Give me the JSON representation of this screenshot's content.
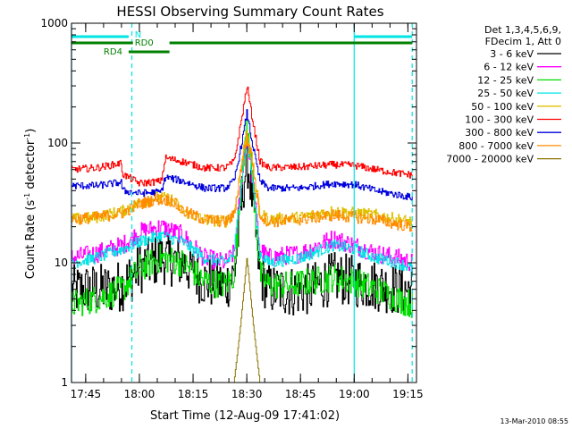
{
  "chart_data": {
    "type": "line",
    "title": "HESSI Observing Summary Count Rates",
    "xlabel": "Start Time (12-Aug-09 17:41:02)",
    "ylabel_main": "Count Rate (s",
    "ylabel_sup1": "-1",
    "ylabel_mid": " detector",
    "ylabel_sup2": "-1",
    "ylabel_end": ")",
    "yscale": "log",
    "ylim": [
      1,
      1000
    ],
    "xlim": [
      17.684,
      19.29
    ],
    "x_tick_labels": [
      "17:45",
      "18:00",
      "18:15",
      "18:30",
      "18:45",
      "19:00",
      "19:15"
    ],
    "x_tick_hours": [
      17.75,
      18.0,
      18.25,
      18.5,
      18.75,
      19.0,
      19.25
    ],
    "y_tick_labels": [
      "1",
      "10",
      "100",
      "1000"
    ],
    "y_tick_values": [
      1,
      10,
      100,
      1000
    ],
    "legend_header": [
      "Det 1,3,4,5,6,9,",
      "FDecim 1, Att 0"
    ],
    "series": [
      {
        "name": "3 - 6 keV",
        "color": "#000000",
        "x": [
          17.684,
          17.75,
          17.85,
          17.92,
          18.0,
          18.1,
          18.2,
          18.3,
          18.4,
          18.44,
          18.48,
          18.5,
          18.52,
          18.56,
          18.6,
          18.7,
          18.8,
          18.9,
          19.0,
          19.1,
          19.2,
          19.27
        ],
        "y": [
          5.8,
          6,
          6,
          6.5,
          9,
          11,
          10,
          7,
          6.5,
          8,
          40,
          75,
          40,
          8,
          6,
          5.8,
          6,
          7.5,
          7,
          6.5,
          6,
          6
        ],
        "noise": 0.22
      },
      {
        "name": "6 - 12 keV",
        "color": "#ff00ff",
        "x": [
          17.684,
          17.8,
          17.92,
          18.0,
          18.1,
          18.2,
          18.3,
          18.4,
          18.44,
          18.48,
          18.5,
          18.52,
          18.56,
          18.6,
          18.75,
          18.9,
          19.0,
          19.1,
          19.2,
          19.27
        ],
        "y": [
          11,
          12,
          14,
          18,
          20,
          17,
          11,
          10,
          12,
          60,
          120,
          60,
          13,
          11,
          12,
          16,
          14,
          12,
          11,
          10
        ],
        "noise": 0.08
      },
      {
        "name": "12 - 25 keV",
        "color": "#00dd00",
        "x": [
          17.684,
          17.8,
          17.92,
          18.0,
          18.1,
          18.2,
          18.3,
          18.4,
          18.44,
          18.48,
          18.5,
          18.52,
          18.56,
          18.6,
          18.7,
          18.8,
          18.9,
          19.0,
          19.1,
          19.2,
          19.27
        ],
        "y": [
          4.5,
          5,
          6,
          9,
          11,
          10,
          7,
          6.5,
          8,
          70,
          140,
          70,
          8,
          6.5,
          6.5,
          7,
          7.5,
          7,
          6,
          5,
          4.5
        ],
        "noise": 0.12
      },
      {
        "name": "25 - 50 keV",
        "color": "#00e5e5",
        "x": [
          17.684,
          17.8,
          17.92,
          18.0,
          18.1,
          18.2,
          18.3,
          18.4,
          18.44,
          18.48,
          18.5,
          18.52,
          18.56,
          18.6,
          18.75,
          18.9,
          19.0,
          19.1,
          19.2,
          19.27
        ],
        "y": [
          10,
          11,
          13,
          15,
          17,
          15,
          11,
          10,
          12,
          60,
          115,
          60,
          12,
          10,
          11,
          14,
          13,
          11,
          10,
          9
        ],
        "noise": 0.05
      },
      {
        "name": "50 - 100 keV",
        "color": "#e0c000",
        "x": [
          17.684,
          17.8,
          17.92,
          18.0,
          18.08,
          18.15,
          18.2,
          18.3,
          18.4,
          18.44,
          18.48,
          18.5,
          18.52,
          18.56,
          18.6,
          18.75,
          18.9,
          19.0,
          19.1,
          19.2,
          19.27
        ],
        "y": [
          23,
          24,
          27,
          32,
          35,
          34,
          27,
          23,
          22,
          26,
          80,
          130,
          80,
          26,
          23,
          24,
          27,
          26,
          25,
          23,
          22
        ],
        "noise": 0.05
      },
      {
        "name": "100 - 300 keV",
        "color": "#ff0000",
        "x": [
          17.684,
          17.8,
          17.916,
          17.92,
          18.0,
          18.1,
          18.12,
          18.2,
          18.3,
          18.4,
          18.44,
          18.48,
          18.5,
          18.52,
          18.56,
          18.6,
          18.75,
          18.9,
          19.0,
          19.1,
          19.2,
          19.27
        ],
        "y": [
          60,
          62,
          68,
          55,
          46,
          48,
          75,
          70,
          62,
          62,
          70,
          180,
          300,
          180,
          70,
          62,
          63,
          66,
          65,
          60,
          56,
          54
        ],
        "noise": 0.03
      },
      {
        "name": "300 - 800 keV",
        "color": "#0000dd",
        "x": [
          17.684,
          17.8,
          17.916,
          17.92,
          18.0,
          18.1,
          18.12,
          18.2,
          18.3,
          18.4,
          18.44,
          18.48,
          18.5,
          18.52,
          18.56,
          18.6,
          18.75,
          18.9,
          19.0,
          19.1,
          19.2,
          19.27
        ],
        "y": [
          44,
          44,
          47,
          40,
          38,
          39,
          52,
          48,
          42,
          42,
          48,
          110,
          180,
          110,
          48,
          42,
          42,
          46,
          45,
          40,
          37,
          35
        ],
        "noise": 0.03
      },
      {
        "name": "800 - 7000 keV",
        "color": "#ff8c00",
        "x": [
          17.684,
          17.8,
          17.92,
          18.0,
          18.08,
          18.15,
          18.2,
          18.3,
          18.4,
          18.44,
          18.48,
          18.5,
          18.52,
          18.56,
          18.6,
          18.75,
          18.9,
          19.0,
          19.1,
          19.2,
          19.27
        ],
        "y": [
          23,
          24,
          26,
          31,
          34,
          33,
          27,
          23,
          22,
          25,
          75,
          110,
          75,
          25,
          22,
          23,
          25,
          24,
          23,
          21,
          20
        ],
        "noise": 0.05
      },
      {
        "name": "7000 - 20000 keV",
        "color": "#8b7500",
        "x": [
          17.684,
          18.4,
          18.44,
          18.47,
          18.5,
          18.53,
          18.56,
          18.6,
          19.27
        ],
        "y": [
          1,
          1,
          1,
          3,
          11,
          3,
          1,
          1,
          1
        ],
        "noise": 0
      }
    ],
    "attenuator_labels": {
      "n": "N",
      "rd0": "RD0",
      "rd4": "RD4"
    },
    "attenuator_colors": {
      "n": "#00e5e5",
      "rd": "#008000"
    },
    "vertical_markers": [
      {
        "hour": 17.684,
        "style": "solid",
        "color": "#00e5e5"
      },
      {
        "hour": 17.965,
        "style": "dashed",
        "color": "#00e5e5"
      },
      {
        "hour": 19.0,
        "style": "solid",
        "color": "#00e5e5"
      },
      {
        "hour": 19.27,
        "style": "dashed",
        "color": "#00e5e5"
      }
    ],
    "n_segments": [
      [
        17.684,
        17.95
      ],
      [
        19.0,
        19.27
      ]
    ],
    "rd0_segments": [
      [
        17.684,
        17.97
      ],
      [
        18.14,
        19.27
      ]
    ],
    "rd4_segments": [
      [
        17.95,
        18.14
      ]
    ]
  },
  "timestamp": "13-Mar-2010 08:55"
}
